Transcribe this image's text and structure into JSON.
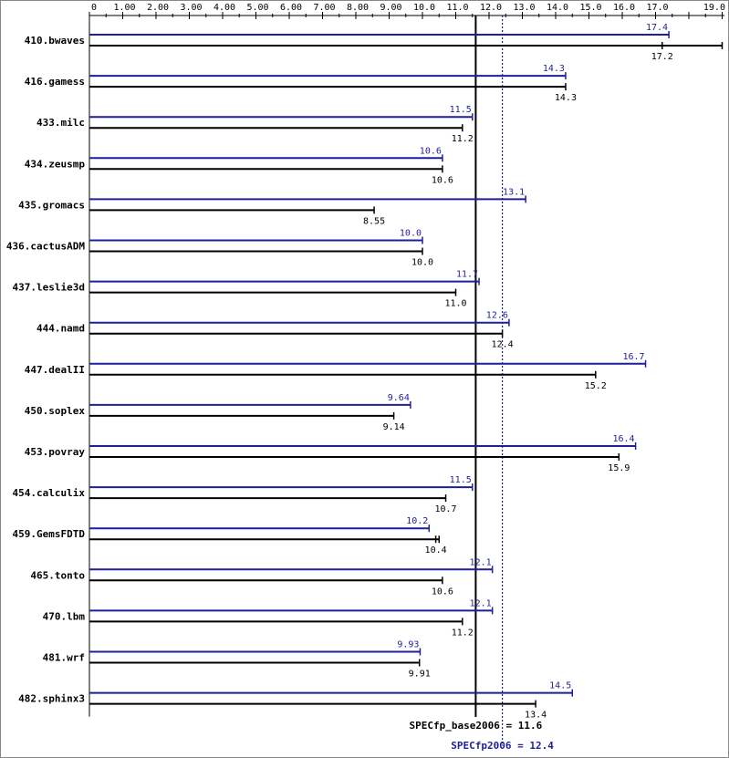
{
  "chart_data": {
    "type": "bar",
    "orientation": "horizontal",
    "xlim": [
      0,
      19.0
    ],
    "x_ticks": [
      "0",
      "1.00",
      "2.00",
      "3.00",
      "4.00",
      "5.00",
      "6.00",
      "7.00",
      "8.00",
      "9.00",
      "10.0",
      "11.0",
      "12.0",
      "13.0",
      "14.0",
      "15.0",
      "16.0",
      "17.0",
      "19.0"
    ],
    "x_tick_values": [
      0,
      1,
      2,
      3,
      4,
      5,
      6,
      7,
      8,
      9,
      10,
      11,
      12,
      13,
      14,
      15,
      16,
      17,
      19
    ],
    "categories": [
      "410.bwaves",
      "416.gamess",
      "433.milc",
      "434.zeusmp",
      "435.gromacs",
      "436.cactusADM",
      "437.leslie3d",
      "444.namd",
      "447.dealII",
      "450.soplex",
      "453.povray",
      "454.calculix",
      "459.GemsFDTD",
      "465.tonto",
      "470.lbm",
      "481.wrf",
      "482.sphinx3"
    ],
    "series": [
      {
        "color": "#1f1f99",
        "values": [
          17.4,
          14.3,
          11.5,
          10.6,
          13.1,
          10.0,
          11.7,
          12.6,
          16.7,
          9.64,
          16.4,
          11.5,
          10.2,
          12.1,
          12.1,
          9.93,
          14.5
        ],
        "labels": [
          "17.4",
          "14.3",
          "11.5",
          "10.6",
          "13.1",
          "10.0",
          "11.7",
          "12.6",
          "16.7",
          "9.64",
          "16.4",
          "11.5",
          "10.2",
          "12.1",
          "12.1",
          "9.93",
          "14.5"
        ]
      },
      {
        "color": "#000000",
        "values": [
          17.2,
          14.3,
          11.2,
          10.6,
          8.55,
          10.0,
          11.0,
          12.4,
          15.2,
          9.14,
          15.9,
          10.7,
          10.4,
          10.6,
          11.2,
          9.91,
          13.4
        ],
        "labels": [
          "17.2",
          "14.3",
          "11.2",
          "10.6",
          "8.55",
          "10.0",
          "11.0",
          "12.4",
          "15.2",
          "9.14",
          "15.9",
          "10.7",
          "10.4",
          "10.6",
          "11.2",
          "9.91",
          "13.4"
        ],
        "run_max": [
          19.0,
          null,
          null,
          null,
          null,
          null,
          null,
          null,
          null,
          null,
          null,
          null,
          10.5,
          null,
          null,
          null,
          null
        ]
      }
    ],
    "reference_lines": [
      {
        "value": 11.6,
        "label": "SPECfp_base2006 = 11.6",
        "color": "#000000",
        "style": "solid"
      },
      {
        "value": 12.4,
        "label": "SPECfp2006 = 12.4",
        "color": "#1f1f99",
        "style": "dotted"
      }
    ],
    "title": "",
    "xlabel": "",
    "ylabel": ""
  }
}
